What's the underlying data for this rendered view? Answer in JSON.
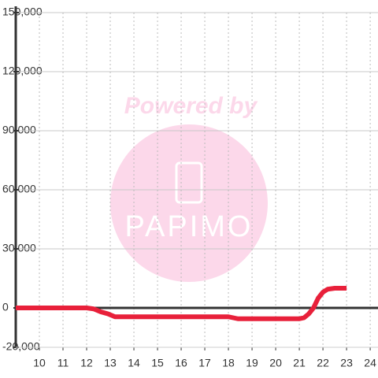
{
  "chart_data": {
    "type": "line",
    "watermark": {
      "heading": "Powered by",
      "brand": "PAPIMO"
    },
    "x": [
      9,
      10,
      11,
      12,
      12.3,
      12.6,
      12.9,
      13.2,
      14,
      15,
      16,
      17,
      18,
      18.4,
      19,
      20,
      21,
      21.2,
      21.4,
      21.6,
      21.8,
      22,
      22.2,
      22.5,
      23
    ],
    "series": [
      {
        "color": "#e8203a",
        "values": [
          0,
          0,
          0,
          0,
          -500,
          -2000,
          -3000,
          -4500,
          -4500,
          -4500,
          -4500,
          -4500,
          -4500,
          -5500,
          -5500,
          -5500,
          -5500,
          -5000,
          -3000,
          0,
          5000,
          8000,
          9500,
          10000,
          10000
        ]
      }
    ],
    "xlim": [
      9,
      24.33
    ],
    "xticks": [
      10,
      11,
      12,
      13,
      14,
      15,
      16,
      17,
      18,
      19,
      20,
      21,
      22,
      23,
      24
    ],
    "ylim": [
      -20000,
      150000
    ],
    "yticks": [
      {
        "value": -20000,
        "label": "-20,000"
      },
      0,
      {
        "value": 30000,
        "label": "30,000"
      },
      {
        "value": 60000,
        "label": "60,000"
      },
      {
        "value": 90000,
        "label": "90,000"
      },
      {
        "value": 120000,
        "label": "120,000"
      },
      {
        "value": 150000,
        "label": "150,000"
      }
    ],
    "grid": true
  }
}
